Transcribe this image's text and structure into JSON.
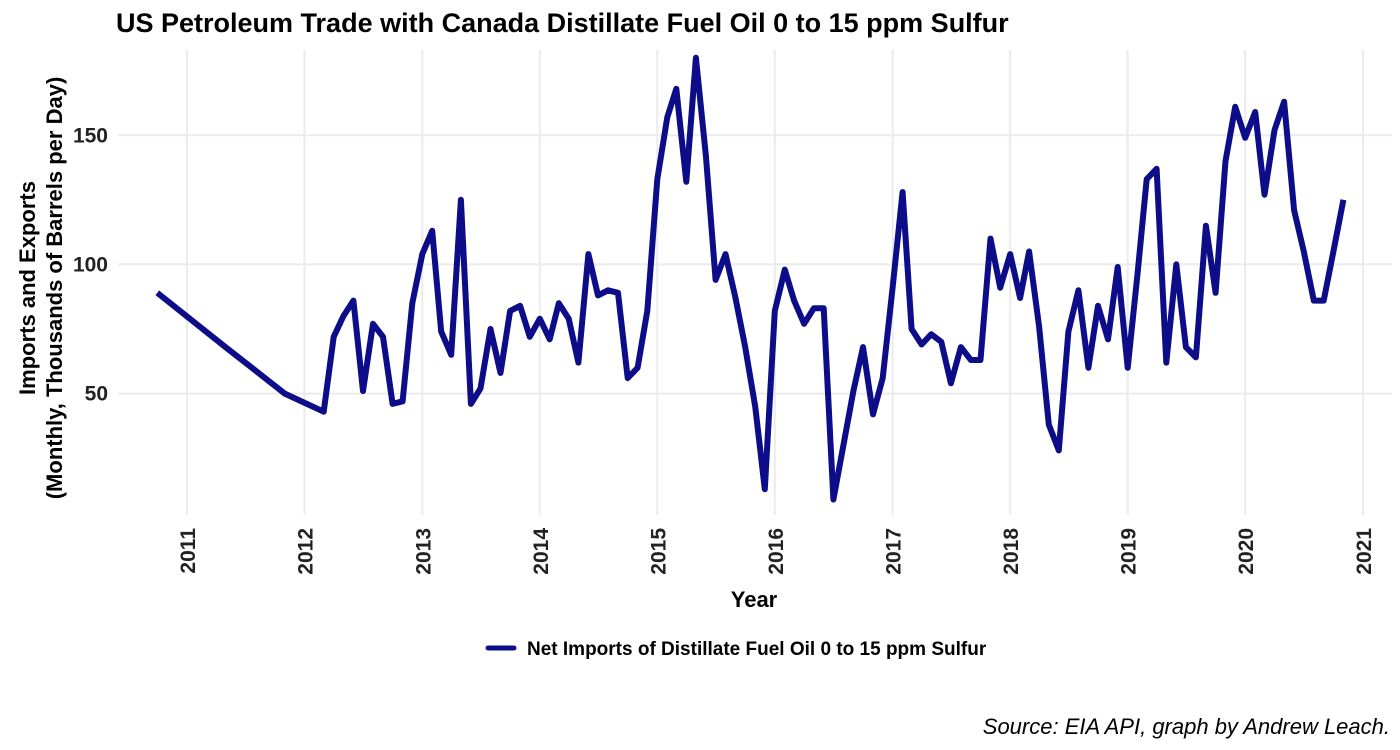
{
  "chart_data": {
    "type": "line",
    "title": "US Petroleum Trade with Canada Distillate Fuel Oil 0 to 15 ppm Sulfur",
    "xlabel": "Year",
    "ylabel_line1": "Imports and Exports",
    "ylabel_line2": "(Monthly, Thousands of Barrels per Day)",
    "caption": "Source: EIA API, graph by Andrew Leach.",
    "xlim": [
      "2010-06-01",
      "2021-04-01"
    ],
    "ylim": [
      3,
      183
    ],
    "x_ticks": [
      "2011",
      "2012",
      "2013",
      "2014",
      "2015",
      "2016",
      "2017",
      "2018",
      "2019",
      "2020",
      "2021"
    ],
    "y_ticks": [
      50,
      100,
      150
    ],
    "grid": true,
    "legend_position": "bottom",
    "line_color": "#0d0d8a",
    "series": [
      {
        "name": "Net Imports of Distillate Fuel Oil 0 to 15 ppm Sulfur",
        "points": [
          [
            "2010-10-01",
            89
          ],
          [
            "2011-05-01",
            68
          ],
          [
            "2011-11-01",
            50
          ],
          [
            "2012-03-01",
            43
          ],
          [
            "2012-04-01",
            72
          ],
          [
            "2012-05-01",
            80
          ],
          [
            "2012-06-01",
            86
          ],
          [
            "2012-07-01",
            51
          ],
          [
            "2012-08-01",
            77
          ],
          [
            "2012-09-01",
            72
          ],
          [
            "2012-10-01",
            46
          ],
          [
            "2012-11-01",
            47
          ],
          [
            "2012-12-01",
            85
          ],
          [
            "2013-01-01",
            104
          ],
          [
            "2013-02-01",
            113
          ],
          [
            "2013-03-01",
            74
          ],
          [
            "2013-04-01",
            65
          ],
          [
            "2013-05-01",
            125
          ],
          [
            "2013-06-01",
            46
          ],
          [
            "2013-07-01",
            52
          ],
          [
            "2013-08-01",
            75
          ],
          [
            "2013-09-01",
            58
          ],
          [
            "2013-10-01",
            82
          ],
          [
            "2013-11-01",
            84
          ],
          [
            "2013-12-01",
            72
          ],
          [
            "2014-01-01",
            79
          ],
          [
            "2014-02-01",
            71
          ],
          [
            "2014-03-01",
            85
          ],
          [
            "2014-04-01",
            79
          ],
          [
            "2014-05-01",
            62
          ],
          [
            "2014-06-01",
            104
          ],
          [
            "2014-07-01",
            88
          ],
          [
            "2014-08-01",
            90
          ],
          [
            "2014-09-01",
            89
          ],
          [
            "2014-10-01",
            56
          ],
          [
            "2014-11-01",
            60
          ],
          [
            "2014-12-01",
            82
          ],
          [
            "2015-01-01",
            133
          ],
          [
            "2015-02-01",
            157
          ],
          [
            "2015-03-01",
            168
          ],
          [
            "2015-04-01",
            132
          ],
          [
            "2015-05-01",
            180
          ],
          [
            "2015-06-01",
            142
          ],
          [
            "2015-07-01",
            94
          ],
          [
            "2015-08-01",
            104
          ],
          [
            "2015-09-01",
            87
          ],
          [
            "2015-10-01",
            68
          ],
          [
            "2015-11-01",
            45
          ],
          [
            "2015-12-01",
            13
          ],
          [
            "2016-01-01",
            82
          ],
          [
            "2016-02-01",
            98
          ],
          [
            "2016-03-01",
            86
          ],
          [
            "2016-04-01",
            77
          ],
          [
            "2016-05-01",
            83
          ],
          [
            "2016-06-01",
            83
          ],
          [
            "2016-07-01",
            9
          ],
          [
            "2016-08-01",
            30
          ],
          [
            "2016-09-01",
            51
          ],
          [
            "2016-10-01",
            68
          ],
          [
            "2016-11-01",
            42
          ],
          [
            "2016-12-01",
            56
          ],
          [
            "2017-01-01",
            91
          ],
          [
            "2017-02-01",
            128
          ],
          [
            "2017-03-01",
            75
          ],
          [
            "2017-04-01",
            69
          ],
          [
            "2017-05-01",
            73
          ],
          [
            "2017-06-01",
            70
          ],
          [
            "2017-07-01",
            54
          ],
          [
            "2017-08-01",
            68
          ],
          [
            "2017-09-01",
            63
          ],
          [
            "2017-10-01",
            63
          ],
          [
            "2017-11-01",
            110
          ],
          [
            "2017-12-01",
            91
          ],
          [
            "2018-01-01",
            104
          ],
          [
            "2018-02-01",
            87
          ],
          [
            "2018-03-01",
            105
          ],
          [
            "2018-04-01",
            76
          ],
          [
            "2018-05-01",
            38
          ],
          [
            "2018-06-01",
            28
          ],
          [
            "2018-07-01",
            74
          ],
          [
            "2018-08-01",
            90
          ],
          [
            "2018-09-01",
            60
          ],
          [
            "2018-10-01",
            84
          ],
          [
            "2018-11-01",
            71
          ],
          [
            "2018-12-01",
            99
          ],
          [
            "2019-01-01",
            60
          ],
          [
            "2019-02-01",
            97
          ],
          [
            "2019-03-01",
            133
          ],
          [
            "2019-04-01",
            137
          ],
          [
            "2019-05-01",
            62
          ],
          [
            "2019-06-01",
            100
          ],
          [
            "2019-07-01",
            68
          ],
          [
            "2019-08-01",
            64
          ],
          [
            "2019-09-01",
            115
          ],
          [
            "2019-10-01",
            89
          ],
          [
            "2019-11-01",
            140
          ],
          [
            "2019-12-01",
            161
          ],
          [
            "2020-01-01",
            149
          ],
          [
            "2020-02-01",
            159
          ],
          [
            "2020-03-01",
            127
          ],
          [
            "2020-04-01",
            152
          ],
          [
            "2020-05-01",
            163
          ],
          [
            "2020-06-01",
            121
          ],
          [
            "2020-07-01",
            105
          ],
          [
            "2020-08-01",
            86
          ],
          [
            "2020-09-01",
            86
          ],
          [
            "2020-10-01",
            105
          ],
          [
            "2020-11-01",
            125
          ]
        ]
      }
    ]
  }
}
